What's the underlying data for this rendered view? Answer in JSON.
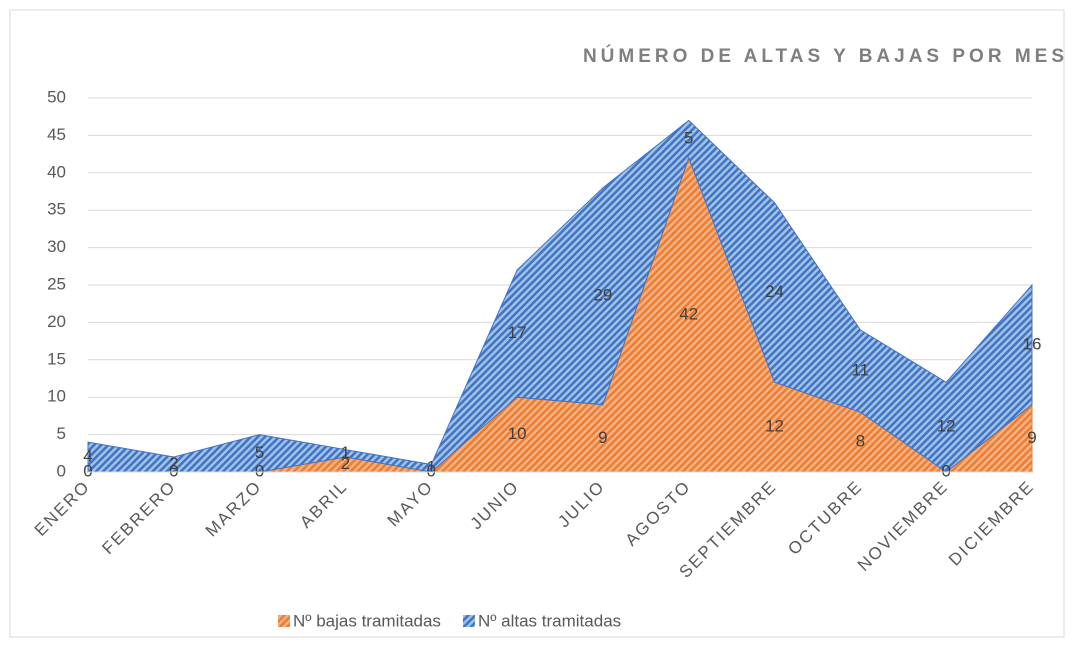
{
  "chart_data": {
    "type": "stacked_area",
    "title": "NÚMERO DE ALTAS Y BAJAS POR MES",
    "categories": [
      "ENERO",
      "FEBRERO",
      "MARZO",
      "ABRIL",
      "MAYO",
      "JUNIO",
      "JULIO",
      "AGOSTO",
      "SEPTIEMBRE",
      "OCTUBRE",
      "NOVIEMBRE",
      "DICIEMBRE"
    ],
    "series": [
      {
        "name": "Nº bajas tramitadas",
        "color": "#ed7d31",
        "values": [
          0,
          0,
          0,
          2,
          0,
          10,
          9,
          42,
          12,
          8,
          0,
          9
        ]
      },
      {
        "name": "Nº altas tramitadas",
        "color": "#4472c4",
        "values": [
          4,
          2,
          5,
          1,
          1,
          17,
          29,
          5,
          24,
          11,
          12,
          16
        ]
      }
    ],
    "ylim": [
      0,
      50
    ],
    "yticks": [
      0,
      5,
      10,
      15,
      20,
      25,
      30,
      35,
      40,
      45,
      50
    ],
    "grid": true,
    "legend": "bottom"
  }
}
